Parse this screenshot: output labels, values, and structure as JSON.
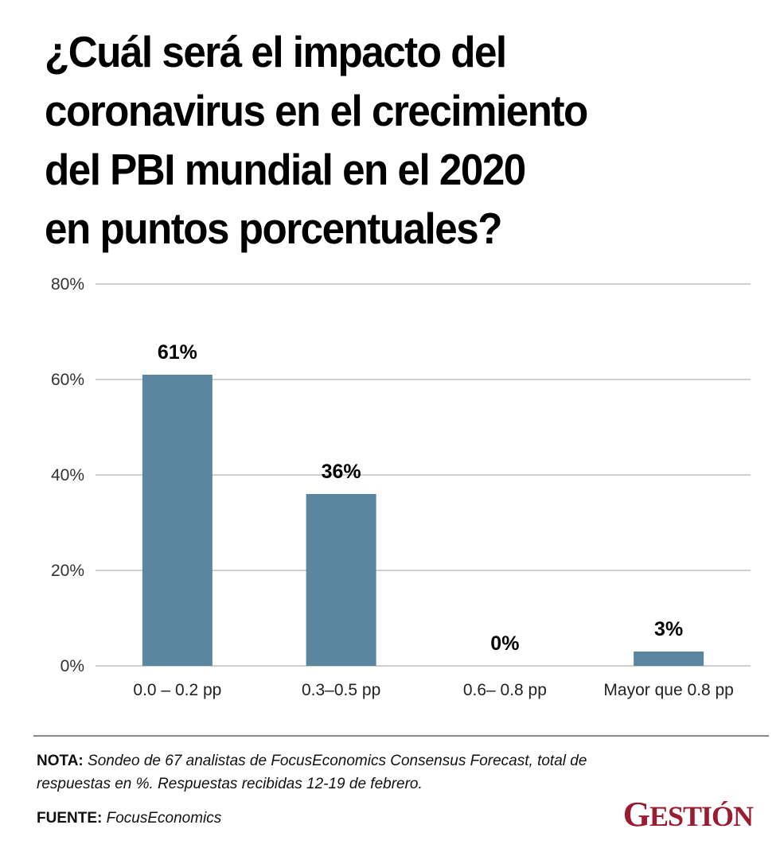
{
  "title_lines": [
    "¿Cuál será el impacto del",
    "coronavirus en el crecimiento",
    "del PBI mundial en el 2020",
    "en puntos porcentuales?"
  ],
  "chart_data": {
    "type": "bar",
    "title": "¿Cuál será el impacto del coronavirus en el crecimiento del PBI mundial en el 2020 en puntos porcentuales?",
    "categories": [
      "0.0 – 0.2 pp",
      "0.3–0.5 pp",
      "0.6– 0.8 pp",
      "Mayor que 0.8 pp"
    ],
    "values": [
      61,
      36,
      0,
      3
    ],
    "data_labels": [
      "61%",
      "36%",
      "0%",
      "3%"
    ],
    "xlabel": "",
    "ylabel": "",
    "ylim": [
      0,
      80
    ],
    "yticks": [
      0,
      20,
      40,
      60,
      80
    ],
    "ytick_labels": [
      "0%",
      "20%",
      "40%",
      "60%",
      "80%"
    ],
    "grid": true,
    "bar_color": "#5b869f"
  },
  "footer": {
    "nota_label": "NOTA:",
    "nota_text": "Sondeo de 67 analistas de FocusEconomics Consensus Forecast, total de respuestas en %. Respuestas recibidas 12-19 de febrero.",
    "fuente_label": "FUENTE:",
    "fuente_text": "FocusEconomics"
  },
  "logo": {
    "first": "G",
    "rest": "ESTIÓN",
    "color": "#9b1b30"
  }
}
